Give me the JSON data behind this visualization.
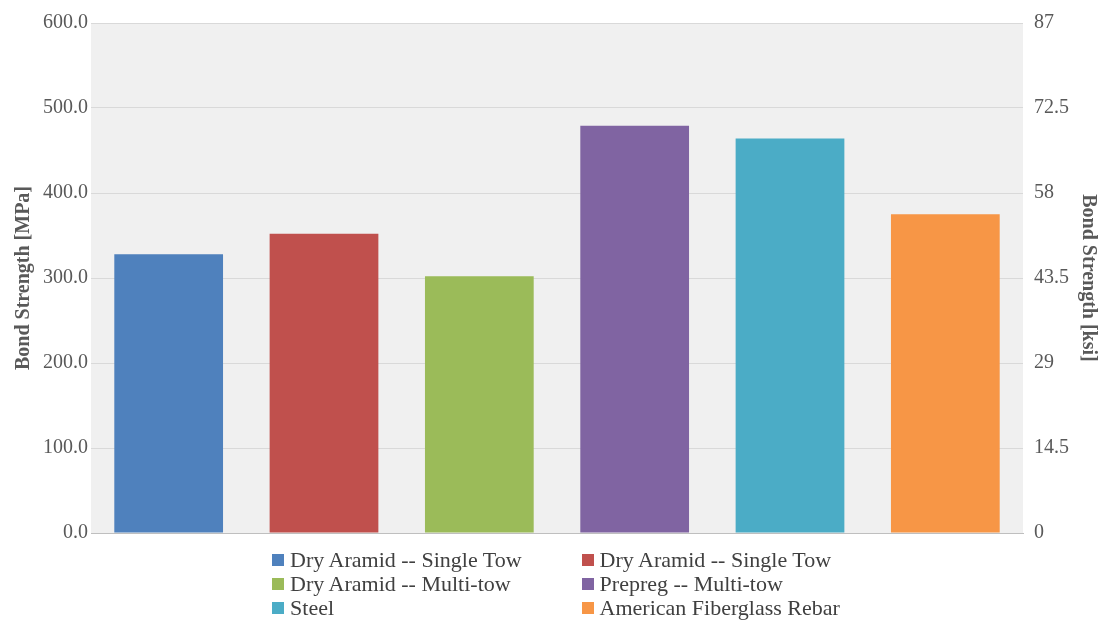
{
  "chart_data": {
    "type": "bar",
    "ylabel": "Bond Strength [MPa]",
    "y2label": "Bond Strength [ksi]",
    "categories": [
      null,
      null,
      null,
      null,
      null,
      null
    ],
    "series": [
      {
        "name": "Dry Aramid -- Single Tow",
        "color": "#4f81bd",
        "values": [
          328,
          null,
          null,
          null,
          null,
          null
        ]
      },
      {
        "name": "Dry Aramid -- Single Tow",
        "color": "#c0504d",
        "values": [
          null,
          352,
          null,
          null,
          null,
          null
        ]
      },
      {
        "name": "Dry Aramid -- Multi-tow",
        "color": "#9bbb59",
        "values": [
          null,
          null,
          302,
          null,
          null,
          null
        ]
      },
      {
        "name": "Prepreg -- Multi-tow",
        "color": "#8064a2",
        "values": [
          null,
          null,
          null,
          479,
          null,
          null
        ]
      },
      {
        "name": "Steel",
        "color": "#4bacc6",
        "values": [
          null,
          null,
          null,
          null,
          464,
          null
        ]
      },
      {
        "name": "American Fiberglass Rebar",
        "color": "#f79646",
        "values": [
          null,
          null,
          null,
          null,
          null,
          375
        ]
      }
    ],
    "ylim": [
      0,
      600
    ],
    "yticks": [
      {
        "value": 0,
        "label": "0.0"
      },
      {
        "value": 100,
        "label": "100.0"
      },
      {
        "value": 200,
        "label": "200.0"
      },
      {
        "value": 300,
        "label": "300.0"
      },
      {
        "value": 400,
        "label": "400.0"
      },
      {
        "value": 500,
        "label": "500.0"
      },
      {
        "value": 600,
        "label": "600.0"
      }
    ],
    "y2lim": [
      0,
      87
    ],
    "y2ticks": [
      0,
      14.5,
      29,
      43.5,
      58,
      72.5,
      87
    ],
    "grid": "y",
    "legend": "bottom"
  }
}
